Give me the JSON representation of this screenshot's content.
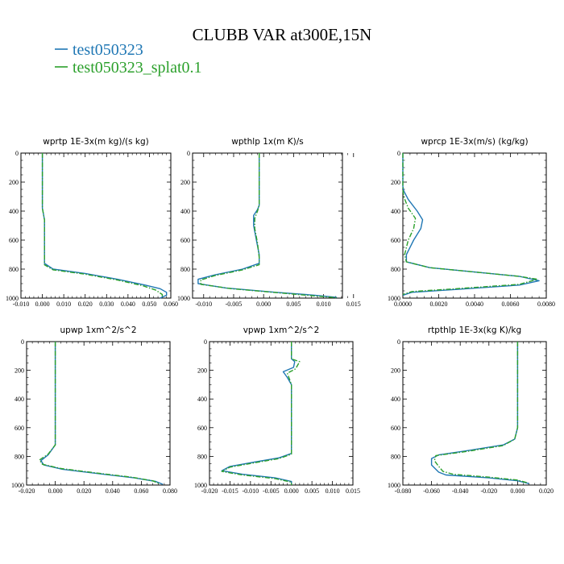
{
  "title": "CLUBB VAR at300E,15N",
  "legend": [
    {
      "label": "test050323",
      "color": "#1f77b4"
    },
    {
      "label": "test050323_splat0.1",
      "color": "#2ca02c"
    }
  ],
  "chart_data": [
    {
      "type": "line",
      "title": "wprtp  1E-3x(m kg)/(s kg)",
      "xlim": [
        -0.01,
        0.06
      ],
      "ylim": [
        1000,
        0
      ],
      "xticks": [
        "-0.010",
        "0.000",
        "0.010",
        "0.020",
        "0.030",
        "0.040",
        "0.050",
        "0.060"
      ],
      "yticks": [
        "0",
        "200",
        "400",
        "600",
        "800",
        "1000"
      ],
      "series": [
        {
          "name": "test050323",
          "color": "#1f77b4",
          "dashed": false,
          "points": [
            [
              0.0,
              0
            ],
            [
              0.0,
              200
            ],
            [
              0.0,
              380
            ],
            [
              0.001,
              460
            ],
            [
              0.001,
              550
            ],
            [
              0.001,
              680
            ],
            [
              0.001,
              760
            ],
            [
              0.005,
              800
            ],
            [
              0.02,
              830
            ],
            [
              0.035,
              870
            ],
            [
              0.048,
              910
            ],
            [
              0.055,
              935
            ],
            [
              0.058,
              960
            ],
            [
              0.058,
              980
            ],
            [
              0.055,
              1000
            ]
          ]
        },
        {
          "name": "test050323_splat0.1",
          "color": "#2ca02c",
          "dashed": true,
          "points": [
            [
              0.0,
              0
            ],
            [
              0.0,
              200
            ],
            [
              0.0,
              380
            ],
            [
              0.001,
              460
            ],
            [
              0.001,
              550
            ],
            [
              0.001,
              680
            ],
            [
              0.001,
              770
            ],
            [
              0.005,
              805
            ],
            [
              0.02,
              835
            ],
            [
              0.035,
              875
            ],
            [
              0.047,
              915
            ],
            [
              0.053,
              945
            ],
            [
              0.056,
              975
            ],
            [
              0.056,
              995
            ]
          ]
        }
      ]
    },
    {
      "type": "line",
      "title": "wpthlp  1x(m K)/s",
      "xlim": [
        -0.012,
        0.015
      ],
      "ylim": [
        1000,
        0
      ],
      "xticks": [
        "-0.010",
        "-0.005",
        "0.000",
        "0.005",
        "0.010",
        "0.015"
      ],
      "yticks": [
        "0",
        "200",
        "400",
        "600",
        "800",
        "1000"
      ],
      "series": [
        {
          "name": "test050323",
          "color": "#1f77b4",
          "dashed": false,
          "points": [
            [
              0.0,
              0
            ],
            [
              0.0,
              200
            ],
            [
              0.0,
              360
            ],
            [
              -0.0003,
              390
            ],
            [
              -0.001,
              430
            ],
            [
              -0.001,
              500
            ],
            [
              -0.0005,
              600
            ],
            [
              0.0,
              700
            ],
            [
              0.0,
              760
            ],
            [
              -0.003,
              800
            ],
            [
              -0.008,
              840
            ],
            [
              -0.011,
              870
            ],
            [
              -0.011,
              900
            ],
            [
              -0.006,
              930
            ],
            [
              0.003,
              960
            ],
            [
              0.01,
              980
            ],
            [
              0.014,
              995
            ]
          ]
        },
        {
          "name": "test050323_splat0.1",
          "color": "#2ca02c",
          "dashed": true,
          "points": [
            [
              0.0,
              0
            ],
            [
              0.0,
              200
            ],
            [
              0.0,
              360
            ],
            [
              -0.0003,
              400
            ],
            [
              -0.0008,
              450
            ],
            [
              -0.0008,
              520
            ],
            [
              -0.0003,
              620
            ],
            [
              0.0,
              720
            ],
            [
              0.0,
              770
            ],
            [
              -0.003,
              805
            ],
            [
              -0.008,
              845
            ],
            [
              -0.0105,
              875
            ],
            [
              -0.0105,
              905
            ],
            [
              -0.005,
              935
            ],
            [
              0.004,
              965
            ],
            [
              0.01,
              985
            ],
            [
              0.014,
              997
            ]
          ]
        }
      ]
    },
    {
      "type": "line",
      "title": "wprcp  1E-3x(m/s) (kg/kg)",
      "xlim": [
        0.0,
        0.008
      ],
      "ylim": [
        1000,
        0
      ],
      "xticks": [
        "0.0000",
        "0.0020",
        "0.0040",
        "0.0060",
        "0.0080"
      ],
      "yticks": [
        "0",
        "200",
        "400",
        "600",
        "800",
        "1000"
      ],
      "series": [
        {
          "name": "test050323",
          "color": "#1f77b4",
          "dashed": false,
          "points": [
            [
              0.0,
              0
            ],
            [
              0.0,
              230
            ],
            [
              5e-05,
              260
            ],
            [
              0.0003,
              320
            ],
            [
              0.0008,
              400
            ],
            [
              0.0011,
              460
            ],
            [
              0.001,
              520
            ],
            [
              0.0006,
              600
            ],
            [
              0.0002,
              700
            ],
            [
              0.0002,
              750
            ],
            [
              0.0015,
              790
            ],
            [
              0.004,
              820
            ],
            [
              0.0065,
              850
            ],
            [
              0.0076,
              880
            ],
            [
              0.0065,
              910
            ],
            [
              0.003,
              940
            ],
            [
              0.0005,
              960
            ],
            [
              0.0,
              980
            ]
          ]
        },
        {
          "name": "test050323_splat0.1",
          "color": "#2ca02c",
          "dashed": true,
          "points": [
            [
              0.0,
              0
            ],
            [
              0.0,
              250
            ],
            [
              5e-05,
              300
            ],
            [
              0.0003,
              380
            ],
            [
              0.0007,
              450
            ],
            [
              0.0006,
              520
            ],
            [
              0.0003,
              600
            ],
            [
              0.0001,
              700
            ],
            [
              0.0002,
              750
            ],
            [
              0.0015,
              790
            ],
            [
              0.004,
              820
            ],
            [
              0.0065,
              850
            ],
            [
              0.0075,
              870
            ],
            [
              0.0065,
              905
            ],
            [
              0.003,
              935
            ],
            [
              0.0005,
              955
            ],
            [
              0.0,
              975
            ]
          ]
        }
      ]
    },
    {
      "type": "line",
      "title": "upwp  1xm^2/s^2",
      "xlim": [
        -0.02,
        0.08
      ],
      "ylim": [
        1000,
        0
      ],
      "xticks": [
        "-0.020",
        "0.000",
        "0.020",
        "0.040",
        "0.060",
        "0.080"
      ],
      "yticks": [
        "0",
        "200",
        "400",
        "600",
        "800",
        "1000"
      ],
      "series": [
        {
          "name": "test050323",
          "color": "#1f77b4",
          "dashed": false,
          "points": [
            [
              0.0,
              0
            ],
            [
              0.0,
              200
            ],
            [
              0.0,
              400
            ],
            [
              0.0,
              600
            ],
            [
              0.0,
              720
            ],
            [
              -0.005,
              790
            ],
            [
              -0.01,
              830
            ],
            [
              -0.008,
              860
            ],
            [
              0.005,
              890
            ],
            [
              0.03,
              920
            ],
            [
              0.055,
              950
            ],
            [
              0.07,
              975
            ],
            [
              0.075,
              995
            ]
          ]
        },
        {
          "name": "test050323_splat0.1",
          "color": "#2ca02c",
          "dashed": true,
          "points": [
            [
              0.0,
              0
            ],
            [
              0.0,
              200
            ],
            [
              0.0,
              400
            ],
            [
              0.0,
              600
            ],
            [
              0.0,
              720
            ],
            [
              -0.005,
              785
            ],
            [
              -0.011,
              825
            ],
            [
              -0.009,
              855
            ],
            [
              0.004,
              885
            ],
            [
              0.028,
              915
            ],
            [
              0.053,
              945
            ],
            [
              0.068,
              970
            ],
            [
              0.073,
              992
            ]
          ]
        }
      ]
    },
    {
      "type": "line",
      "title": "vpwp  1xm^2/s^2",
      "xlim": [
        -0.02,
        0.015
      ],
      "ylim": [
        1000,
        0
      ],
      "xticks": [
        "-0.020",
        "-0.015",
        "-0.010",
        "-0.005",
        "0.000",
        "0.005",
        "0.010",
        "0.015"
      ],
      "yticks": [
        "0",
        "200",
        "400",
        "600",
        "800",
        "1000"
      ],
      "series": [
        {
          "name": "test050323",
          "color": "#1f77b4",
          "dashed": false,
          "points": [
            [
              0.0,
              0
            ],
            [
              0.0,
              120
            ],
            [
              0.0008,
              140
            ],
            [
              0.0005,
              180
            ],
            [
              -0.002,
              210
            ],
            [
              -0.001,
              250
            ],
            [
              0.0,
              300
            ],
            [
              0.0,
              500
            ],
            [
              0.0,
              700
            ],
            [
              0.0,
              780
            ],
            [
              -0.003,
              810
            ],
            [
              -0.009,
              840
            ],
            [
              -0.015,
              870
            ],
            [
              -0.017,
              900
            ],
            [
              -0.012,
              925
            ],
            [
              -0.004,
              950
            ],
            [
              0.0,
              975
            ],
            [
              0.0,
              1000
            ]
          ]
        },
        {
          "name": "test050323_splat0.1",
          "color": "#2ca02c",
          "dashed": true,
          "points": [
            [
              0.0,
              0
            ],
            [
              0.0,
              120
            ],
            [
              0.002,
              140
            ],
            [
              0.001,
              190
            ],
            [
              -0.001,
              220
            ],
            [
              -0.0005,
              260
            ],
            [
              0.0,
              300
            ],
            [
              0.0,
              500
            ],
            [
              0.0,
              700
            ],
            [
              0.0,
              785
            ],
            [
              -0.003,
              815
            ],
            [
              -0.009,
              845
            ],
            [
              -0.015,
              875
            ],
            [
              -0.017,
              905
            ],
            [
              -0.012,
              930
            ],
            [
              -0.004,
              955
            ],
            [
              0.0,
              980
            ],
            [
              0.0,
              1000
            ]
          ]
        }
      ]
    },
    {
      "type": "line",
      "title": "rtpthlp  1E-3x(kg K)/kg",
      "xlim": [
        -0.08,
        0.02
      ],
      "ylim": [
        1000,
        0
      ],
      "xticks": [
        "-0.080",
        "-0.060",
        "-0.040",
        "-0.020",
        "0.000",
        "0.020"
      ],
      "yticks": [
        "0",
        "200",
        "400",
        "600",
        "800",
        "1000"
      ],
      "series": [
        {
          "name": "test050323",
          "color": "#1f77b4",
          "dashed": false,
          "points": [
            [
              0.0,
              0
            ],
            [
              0.0,
              200
            ],
            [
              0.0,
              400
            ],
            [
              0.0,
              600
            ],
            [
              -0.002,
              680
            ],
            [
              -0.01,
              720
            ],
            [
              -0.035,
              760
            ],
            [
              -0.055,
              790
            ],
            [
              -0.06,
              815
            ],
            [
              -0.06,
              860
            ],
            [
              -0.055,
              910
            ],
            [
              -0.05,
              930
            ],
            [
              -0.02,
              950
            ],
            [
              0.0,
              970
            ],
            [
              0.008,
              990
            ]
          ]
        },
        {
          "name": "test050323_splat0.1",
          "color": "#2ca02c",
          "dashed": true,
          "points": [
            [
              0.0,
              0
            ],
            [
              0.0,
              200
            ],
            [
              0.0,
              400
            ],
            [
              0.0,
              600
            ],
            [
              -0.002,
              680
            ],
            [
              -0.01,
              725
            ],
            [
              -0.035,
              765
            ],
            [
              -0.057,
              795
            ],
            [
              -0.058,
              830
            ],
            [
              -0.055,
              870
            ],
            [
              -0.052,
              905
            ],
            [
              -0.045,
              925
            ],
            [
              -0.02,
              945
            ],
            [
              0.0,
              965
            ],
            [
              0.007,
              985
            ]
          ]
        }
      ]
    }
  ]
}
